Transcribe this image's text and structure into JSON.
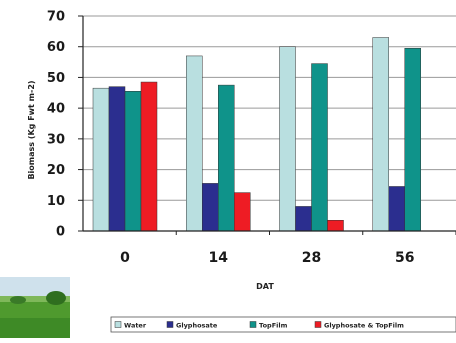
{
  "chart_data": {
    "type": "bar",
    "title": "",
    "xlabel": "DAT",
    "ylabel": "Biomass (Kg Fwt m-2)",
    "categories": [
      "0",
      "14",
      "28",
      "56"
    ],
    "ylim": [
      0,
      70
    ],
    "yticks": [
      0,
      10,
      20,
      30,
      40,
      50,
      60,
      70
    ],
    "grid": true,
    "legend_position": "bottom",
    "series": [
      {
        "name": "Water",
        "color": "#b9dfe0",
        "values": [
          46.5,
          57,
          60,
          63
        ]
      },
      {
        "name": "Glyphosate",
        "color": "#2b2e8f",
        "values": [
          47,
          15.5,
          8,
          14.5
        ]
      },
      {
        "name": "TopFilm",
        "color": "#0f938a",
        "values": [
          45.5,
          47.5,
          54.5,
          59.5
        ]
      },
      {
        "name": "Glyphosate & TopFilm",
        "color": "#ee1c24",
        "values": [
          48.5,
          12.5,
          3.5,
          null
        ]
      }
    ]
  },
  "photo": {
    "icon": "field-photo"
  }
}
